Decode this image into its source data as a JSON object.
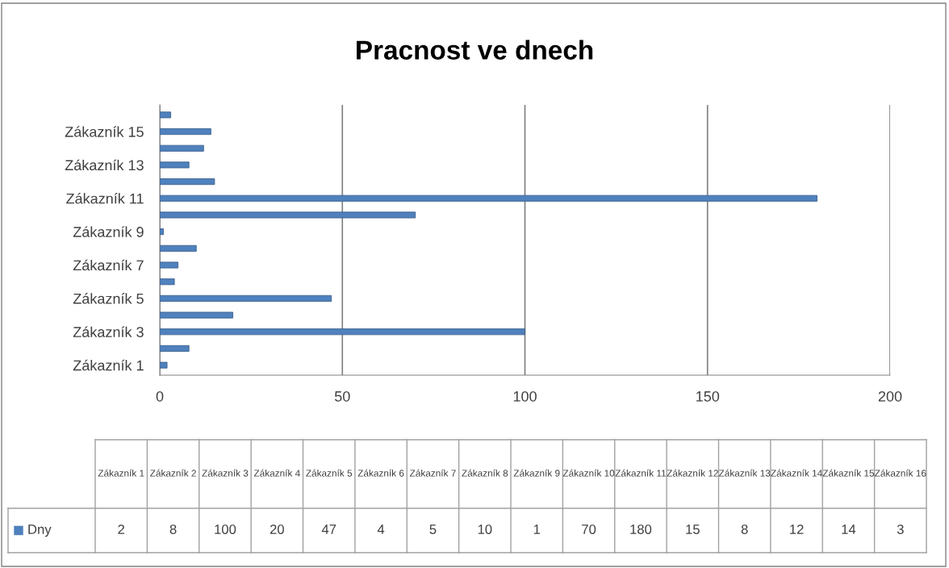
{
  "chart_data": [
    {
      "type": "bar",
      "orientation": "horizontal",
      "title": "Pracnost ve dnech",
      "categories": [
        null,
        "Zákazník 15",
        null,
        "Zákazník 13",
        null,
        "Zákazník 11",
        null,
        "Zákazník 9",
        null,
        "Zákazník 7",
        null,
        "Zákazník 5",
        null,
        "Zákazník 3",
        null,
        "Zákazník 1"
      ],
      "series": [
        {
          "color": "#4f81bd",
          "values": [
            3,
            14,
            12,
            8,
            15,
            180,
            70,
            1,
            10,
            5,
            4,
            47,
            20,
            100,
            8,
            2
          ]
        }
      ],
      "xlim": [
        0,
        200
      ],
      "xticks": [
        0,
        50,
        100,
        150,
        200
      ],
      "grid": "x"
    },
    {
      "type": "other",
      "categories": [
        "Zákazník 1",
        "Zákazník 2",
        "Zákazník 3",
        "Zákazník 4",
        "Zákazník 5",
        "Zákazník 6",
        "Zákazník 7",
        "Zákazník 8",
        "Zákazník 9",
        "Zákazník 10",
        "Zákazník 11",
        "Zákazník 12",
        "Zákazník 13",
        "Zákazník 14",
        "Zákazník 15",
        "Zákazník 16"
      ],
      "series": [
        {
          "name": "Dny",
          "color": "#4f81bd",
          "values": [
            2,
            8,
            100,
            20,
            47,
            4,
            5,
            10,
            1,
            70,
            180,
            15,
            8,
            12,
            14,
            3
          ]
        }
      ],
      "legend": "left",
      "data_labels": true
    }
  ]
}
